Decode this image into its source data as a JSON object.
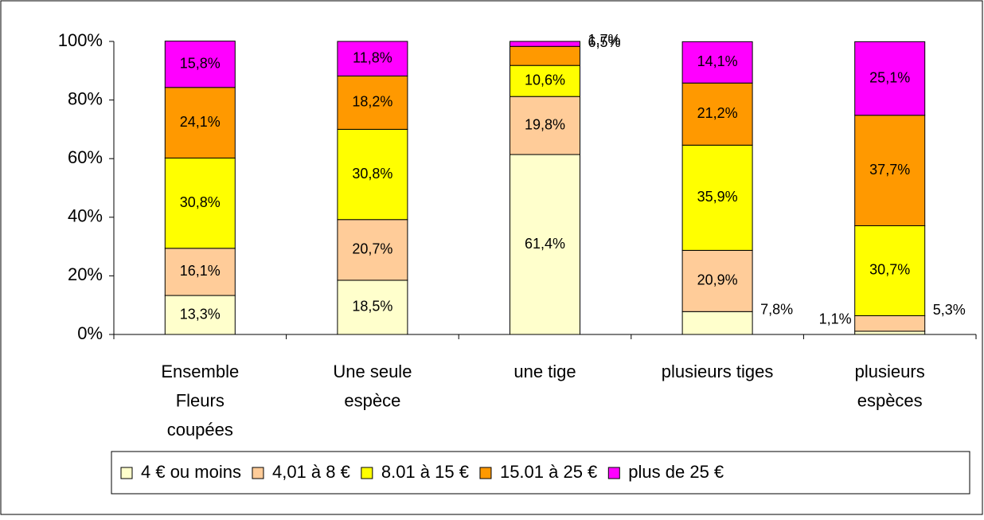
{
  "chart_data": {
    "type": "stacked_bar",
    "categories": [
      "Ensemble\nFleurs\ncoupées",
      "Une seule\nespèce",
      "une tige",
      "plusieurs tiges",
      "plusieurs\nespèces"
    ],
    "series": [
      {
        "name": "4 € ou moins",
        "color": "#ffffcc",
        "values": [
          13.3,
          18.5,
          61.4,
          7.8,
          1.1
        ],
        "value_labels": [
          "13,3%",
          "18,5%",
          "61,4%",
          "7,8%",
          "1,1%"
        ]
      },
      {
        "name": "4,01 à 8 €",
        "color": "#ffcc99",
        "values": [
          16.1,
          20.7,
          19.8,
          20.9,
          5.3
        ],
        "value_labels": [
          "16,1%",
          "20,7%",
          "19,8%",
          "20,9%",
          "5,3%"
        ]
      },
      {
        "name": "8.01 à 15 €",
        "color": "#ffff00",
        "values": [
          30.8,
          30.8,
          10.6,
          35.9,
          30.7
        ],
        "value_labels": [
          "30,8%",
          "30,8%",
          "10,6%",
          "35,9%",
          "30,7%"
        ]
      },
      {
        "name": "15.01 à 25  €",
        "color": "#ff9900",
        "values": [
          24.1,
          18.2,
          6.5,
          21.2,
          37.7
        ],
        "value_labels": [
          "24,1%",
          "18,2%",
          "6,5%",
          "21,2%",
          "37,7%"
        ]
      },
      {
        "name": "plus de 25 €",
        "color": "#ff00ff",
        "values": [
          15.8,
          11.8,
          1.7,
          14.1,
          25.1
        ],
        "value_labels": [
          "15,8%",
          "11,8%",
          "1,7%",
          "14,1%",
          "25,1%"
        ]
      }
    ],
    "ylim": [
      0,
      100
    ],
    "yticks": [
      {
        "value": 0,
        "label": "0%"
      },
      {
        "value": 20,
        "label": "20%"
      },
      {
        "value": 40,
        "label": "40%"
      },
      {
        "value": 60,
        "label": "60%"
      },
      {
        "value": 80,
        "label": "80%"
      },
      {
        "value": 100,
        "label": "100%"
      }
    ],
    "legend": "bottom"
  }
}
